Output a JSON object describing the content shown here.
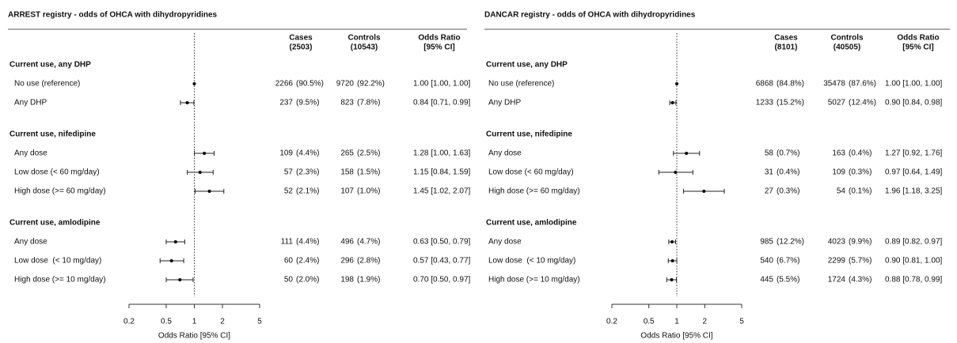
{
  "chart_data": [
    {
      "type": "forest",
      "title": "ARREST registry - odds of OHCA with dihydropyridines",
      "columns": [
        [
          "Cases",
          "(2503)"
        ],
        [
          "Controls",
          "(10543)"
        ],
        [
          "Odds Ratio",
          "[95% CI]"
        ]
      ],
      "log_x": true,
      "xlim": [
        0.2,
        5
      ],
      "xticks": [
        0.2,
        0.5,
        1,
        2,
        5
      ],
      "reference_line": 1,
      "xlabel": "Odds Ratio [95% CI]",
      "groups": [
        {
          "heading": "Current use, any DHP",
          "rows": [
            {
              "label": "No use (reference)",
              "cases": "2266",
              "cases_pct": "(90.5%)",
              "controls": "9720",
              "controls_pct": "(92.2%)",
              "or_label": "1.00 [1.00, 1.00]",
              "estimate": 1.0,
              "lower": 1.0,
              "upper": 1.0
            },
            {
              "label": "Any DHP",
              "cases": "237",
              "cases_pct": "(9.5%)",
              "controls": "823",
              "controls_pct": "(7.8%)",
              "or_label": "0.84 [0.71, 0.99]",
              "estimate": 0.84,
              "lower": 0.71,
              "upper": 0.99
            }
          ]
        },
        {
          "heading": "Current use, nifedipine",
          "rows": [
            {
              "label": "Any dose",
              "cases": "109",
              "cases_pct": "(4.4%)",
              "controls": "265",
              "controls_pct": "(2.5%)",
              "or_label": "1.28 [1.00, 1.63]",
              "estimate": 1.28,
              "lower": 1.0,
              "upper": 1.63
            },
            {
              "label": "Low dose (< 60 mg/day)",
              "cases": "57",
              "cases_pct": "(2.3%)",
              "controls": "158",
              "controls_pct": "(1.5%)",
              "or_label": "1.15 [0.84, 1.59]",
              "estimate": 1.15,
              "lower": 0.84,
              "upper": 1.59
            },
            {
              "label": "High dose (>= 60 mg/day)",
              "cases": "52",
              "cases_pct": "(2.1%)",
              "controls": "107",
              "controls_pct": "(1.0%)",
              "or_label": "1.45 [1.02, 2.07]",
              "estimate": 1.45,
              "lower": 1.02,
              "upper": 2.07
            }
          ]
        },
        {
          "heading": "Current use, amlodipine",
          "rows": [
            {
              "label": "Any dose",
              "cases": "111",
              "cases_pct": "(4.4%)",
              "controls": "496",
              "controls_pct": "(4.7%)",
              "or_label": "0.63 [0.50, 0.79]",
              "estimate": 0.63,
              "lower": 0.5,
              "upper": 0.79
            },
            {
              "label": "Low dose  (< 10 mg/day)",
              "cases": "60",
              "cases_pct": "(2.4%)",
              "controls": "296",
              "controls_pct": "(2.8%)",
              "or_label": "0.57 [0.43, 0.77]",
              "estimate": 0.57,
              "lower": 0.43,
              "upper": 0.77
            },
            {
              "label": "High dose (>= 10 mg/day)",
              "cases": "50",
              "cases_pct": "(2.0%)",
              "controls": "198",
              "controls_pct": "(1.9%)",
              "or_label": "0.70 [0.50, 0.97]",
              "estimate": 0.7,
              "lower": 0.5,
              "upper": 0.97
            }
          ]
        }
      ]
    },
    {
      "type": "forest",
      "title": "DANCAR registry - odds of OHCA with dihydropyridines",
      "columns": [
        [
          "Cases",
          "(8101)"
        ],
        [
          "Controls",
          "(40505)"
        ],
        [
          "Odds Ratio",
          "[95% CI]"
        ]
      ],
      "log_x": true,
      "xlim": [
        0.2,
        5
      ],
      "xticks": [
        0.2,
        0.5,
        1,
        2,
        5
      ],
      "reference_line": 1,
      "xlabel": "Odds Ratio [95% CI]",
      "groups": [
        {
          "heading": "Current use, any DHP",
          "rows": [
            {
              "label": "No use (reference)",
              "cases": "6868",
              "cases_pct": "(84.8%)",
              "controls": "35478",
              "controls_pct": "(87.6%)",
              "or_label": "1.00 [1.00, 1.00]",
              "estimate": 1.0,
              "lower": 1.0,
              "upper": 1.0
            },
            {
              "label": "Any DHP",
              "cases": "1233",
              "cases_pct": "(15.2%)",
              "controls": "5027",
              "controls_pct": "(12.4%)",
              "or_label": "0.90 [0.84, 0.98]",
              "estimate": 0.9,
              "lower": 0.84,
              "upper": 0.98
            }
          ]
        },
        {
          "heading": "Current use, nifedipine",
          "rows": [
            {
              "label": "Any dose",
              "cases": "58",
              "cases_pct": "(0.7%)",
              "controls": "163",
              "controls_pct": "(0.4%)",
              "or_label": "1.27 [0.92, 1.76]",
              "estimate": 1.27,
              "lower": 0.92,
              "upper": 1.76
            },
            {
              "label": "Low dose (< 60 mg/day)",
              "cases": "31",
              "cases_pct": "(0.4%)",
              "controls": "109",
              "controls_pct": "(0.3%)",
              "or_label": "0.97 [0.64, 1.49]",
              "estimate": 0.97,
              "lower": 0.64,
              "upper": 1.49
            },
            {
              "label": "High dose (>= 60 mg/day)",
              "cases": "27",
              "cases_pct": "(0.3%)",
              "controls": "54",
              "controls_pct": "(0.1%)",
              "or_label": "1.96 [1.18, 3.25]",
              "estimate": 1.96,
              "lower": 1.18,
              "upper": 3.25
            }
          ]
        },
        {
          "heading": "Current use, amlodipine",
          "rows": [
            {
              "label": "Any dose",
              "cases": "985",
              "cases_pct": "(12.2%)",
              "controls": "4023",
              "controls_pct": "(9.9%)",
              "or_label": "0.89 [0.82, 0.97]",
              "estimate": 0.89,
              "lower": 0.82,
              "upper": 0.97
            },
            {
              "label": "Low dose  (< 10 mg/day)",
              "cases": "540",
              "cases_pct": "(6.7%)",
              "controls": "2299",
              "controls_pct": "(5.7%)",
              "or_label": "0.90 [0.81, 1.00]",
              "estimate": 0.9,
              "lower": 0.81,
              "upper": 1.0
            },
            {
              "label": "High dose (>= 10 mg/day)",
              "cases": "445",
              "cases_pct": "(5.5%)",
              "controls": "1724",
              "controls_pct": "(4.3%)",
              "or_label": "0.88 [0.78, 0.99]",
              "estimate": 0.88,
              "lower": 0.78,
              "upper": 0.99
            }
          ]
        }
      ]
    }
  ]
}
